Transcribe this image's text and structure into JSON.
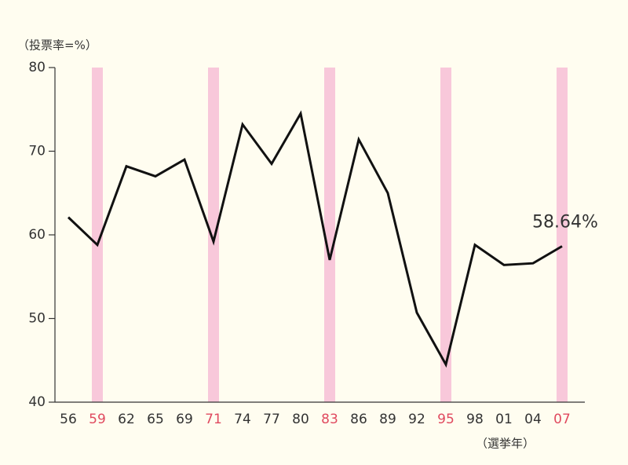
{
  "chart_data": {
    "type": "line",
    "y_label": "（投票率=%）",
    "x_label": "（選挙年）",
    "categories": [
      "56",
      "59",
      "62",
      "65",
      "69",
      "71",
      "74",
      "77",
      "80",
      "83",
      "86",
      "89",
      "92",
      "95",
      "98",
      "01",
      "04",
      "07"
    ],
    "series": [
      {
        "color": "#111111",
        "values": [
          62.1,
          58.8,
          68.2,
          67.0,
          69.0,
          59.2,
          73.2,
          68.5,
          74.5,
          57.0,
          71.4,
          65.0,
          50.7,
          44.5,
          58.8,
          56.4,
          56.6,
          58.64
        ]
      }
    ],
    "annotation": "58.64%",
    "highlight_categories": [
      "59",
      "71",
      "83",
      "95",
      "07"
    ],
    "highlight_color": "#f8c8da",
    "highlight_text_color": "#e04a5f",
    "ylim": [
      40,
      80
    ],
    "yticks": [
      40,
      50,
      60,
      70,
      80
    ],
    "grid": false
  }
}
